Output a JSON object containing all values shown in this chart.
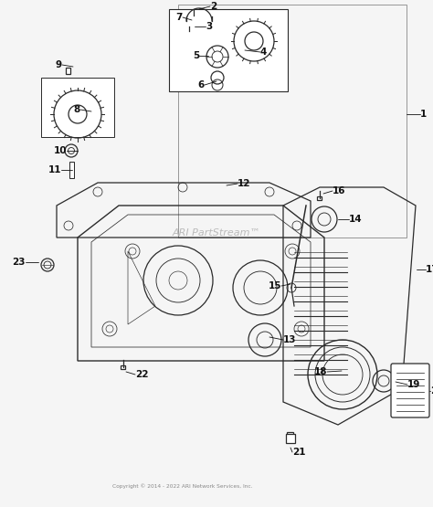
{
  "background_color": "#f5f5f5",
  "line_color": "#2a2a2a",
  "label_color": "#111111",
  "watermark": "ARI PartStream™",
  "watermark_color": "#bbbbbb",
  "copyright": "Copyright © 2014 - 2022 ARI Network Services, Inc.",
  "fig_w": 4.74,
  "fig_h": 5.55,
  "dpi": 100
}
